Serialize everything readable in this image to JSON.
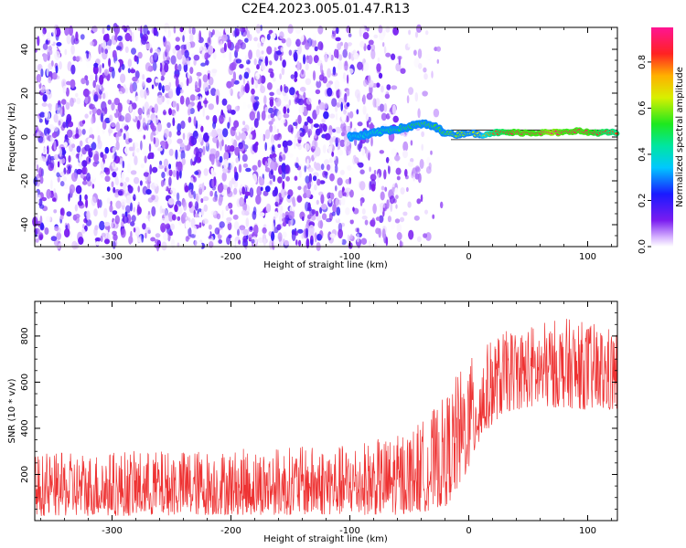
{
  "title": "C2E4.2023.005.01.47.R13",
  "chart_data": [
    {
      "type": "heatmap",
      "title": "C2E4.2023.005.01.47.R13",
      "xlabel": "Height of straight line (km)",
      "ylabel": "Frequency (Hz)",
      "xlim": [
        -365,
        125
      ],
      "ylim": [
        -50,
        50
      ],
      "x_ticks": [
        -300,
        -200,
        -100,
        0,
        100
      ],
      "y_ticks": [
        -40,
        -20,
        0,
        20,
        40
      ],
      "colorbar": {
        "label": "Normalized spectral amplitude",
        "range": [
          0.0,
          0.95
        ],
        "ticks": [
          0.0,
          0.2,
          0.4,
          0.6,
          0.8
        ]
      },
      "noise_region_x": [
        -365,
        -25
      ],
      "signal_track": {
        "x": [
          -100,
          -85,
          -70,
          -55,
          -40,
          -30,
          -20,
          -10,
          0,
          10,
          20,
          40,
          60,
          70,
          80,
          90,
          100,
          110,
          125
        ],
        "freq_hz": [
          0,
          1,
          3,
          4,
          6,
          5,
          2,
          1,
          2,
          1,
          2,
          2,
          2,
          2,
          2,
          3,
          2,
          2,
          2
        ],
        "amplitude": [
          0.35,
          0.4,
          0.45,
          0.5,
          0.55,
          0.55,
          0.55,
          0.6,
          0.6,
          0.65,
          0.8,
          0.9,
          0.9,
          0.95,
          0.9,
          0.9,
          0.9,
          0.85,
          0.8
        ]
      },
      "colors": {
        "low": "#e8d6ff",
        "mid": "#7a1cf0",
        "track_edge": "#00e0d0",
        "track_core": "#ff2020"
      }
    },
    {
      "type": "line",
      "xlabel": "Height of straight line (km)",
      "ylabel": "SNR (10 * v/v)",
      "xlim": [
        -365,
        125
      ],
      "ylim": [
        0,
        950
      ],
      "x_ticks": [
        -300,
        -200,
        -100,
        0,
        100
      ],
      "y_ticks": [
        200,
        400,
        600,
        800
      ],
      "envelope": {
        "x": [
          -365,
          -300,
          -200,
          -150,
          -100,
          -60,
          -40,
          -20,
          -10,
          0,
          10,
          20,
          30,
          50,
          80,
          100,
          125
        ],
        "base": [
          20,
          20,
          25,
          25,
          25,
          25,
          35,
          60,
          120,
          220,
          340,
          420,
          470,
          490,
          490,
          480,
          470
        ],
        "peak": [
          290,
          300,
          310,
          320,
          330,
          370,
          430,
          540,
          640,
          700,
          740,
          790,
          820,
          850,
          880,
          860,
          840
        ]
      },
      "color": "#ee3333"
    }
  ]
}
